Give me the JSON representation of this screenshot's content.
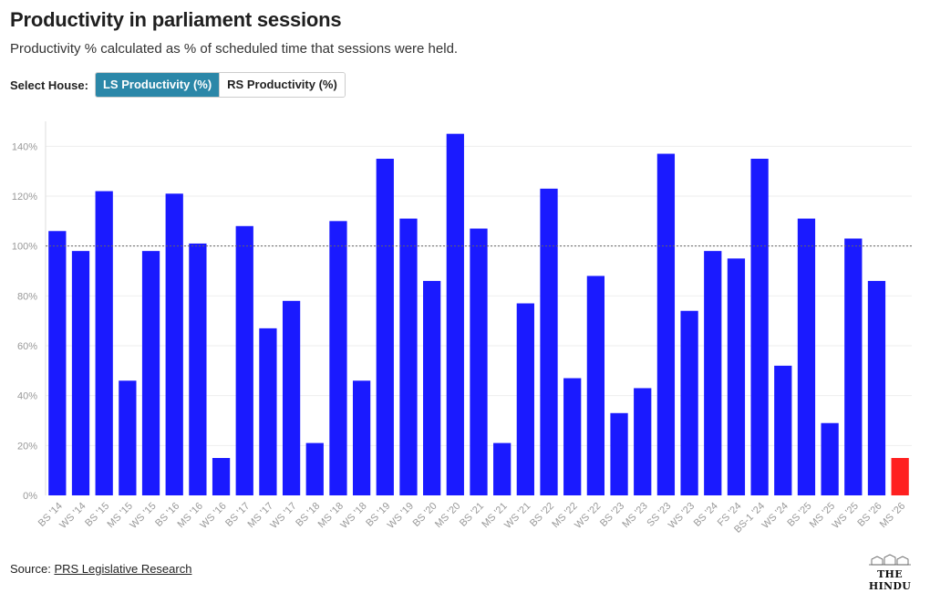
{
  "header": {
    "title": "Productivity in parliament sessions",
    "subtitle": "Productivity % calculated as % of scheduled time that sessions were held."
  },
  "controls": {
    "label": "Select House:",
    "options": [
      "LS Productivity (%)",
      "RS Productivity (%)"
    ],
    "selected": "LS Productivity (%)"
  },
  "footer": {
    "source_label": "Source:",
    "source_link": "PRS Legislative Research",
    "logo_text": "THE HINDU"
  },
  "colors": {
    "bar": "#1a1aff",
    "highlight": "#ff2020",
    "reference_line": "#666666",
    "active_button": "#2b87a8"
  },
  "chart_data": {
    "type": "bar",
    "categories": [
      "BS '14",
      "WS '14",
      "BS '15",
      "MS '15",
      "WS '15",
      "BS '16",
      "MS '16",
      "WS '16",
      "BS '17",
      "MS '17",
      "WS '17",
      "BS '18",
      "MS '18",
      "WS '18",
      "BS '19",
      "WS '19",
      "BS '20",
      "MS '20",
      "BS '21",
      "MS '21",
      "WS '21",
      "BS '22",
      "MS '22",
      "WS '22",
      "BS '23",
      "MS '23",
      "SS '23",
      "WS '23",
      "BS '24",
      "FS '24",
      "BS-1 '24",
      "WS '24",
      "BS '25",
      "MS '25",
      "WS '25",
      "BS '26",
      "MS '26"
    ],
    "values": [
      106,
      98,
      122,
      46,
      98,
      121,
      101,
      15,
      108,
      67,
      78,
      21,
      110,
      46,
      135,
      111,
      86,
      145,
      107,
      21,
      77,
      123,
      47,
      88,
      33,
      43,
      137,
      74,
      98,
      95,
      135,
      52,
      111,
      29,
      103,
      86,
      15
    ],
    "highlight_index": 36,
    "ylim": [
      0,
      150
    ],
    "yticks": [
      0,
      20,
      40,
      60,
      80,
      100,
      120,
      140
    ],
    "ytick_suffix": "%",
    "reference_value": 100,
    "grid": true,
    "title": "",
    "xlabel": "",
    "ylabel": ""
  }
}
